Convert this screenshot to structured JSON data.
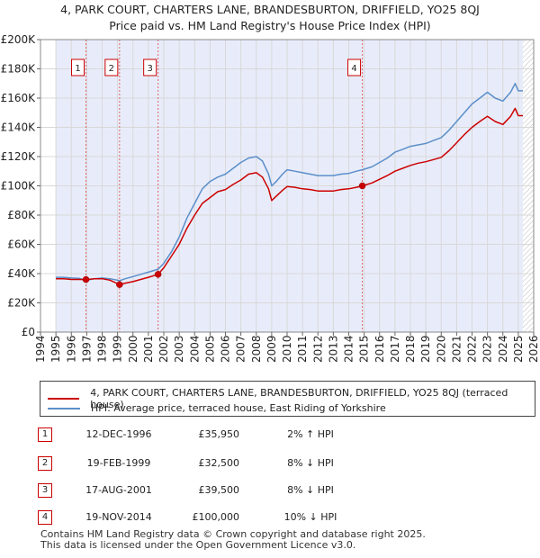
{
  "title_line1": "4, PARK COURT, CHARTERS LANE, BRANDESBURTON, DRIFFIELD, YO25 8QJ",
  "title_line2": "Price paid vs. HM Land Registry's House Price Index (HPI)",
  "colors": {
    "price_line": "#cc0000",
    "hpi_line": "#5b8fc9",
    "band": "#e8ecfa",
    "vline": "#dd6666"
  },
  "legend": {
    "price_label": "4, PARK COURT, CHARTERS LANE, BRANDESBURTON, DRIFFIELD, YO25 8QJ (terraced house)",
    "hpi_label": "HPI: Average price, terraced house, East Riding of Yorkshire"
  },
  "sales": [
    {
      "num": "1",
      "date": "12-DEC-1996",
      "price": "£35,950",
      "hpi": "2% ↑ HPI"
    },
    {
      "num": "2",
      "date": "19-FEB-1999",
      "price": "£32,500",
      "hpi": "8% ↓ HPI"
    },
    {
      "num": "3",
      "date": "17-AUG-2001",
      "price": "£39,500",
      "hpi": "8% ↓ HPI"
    },
    {
      "num": "4",
      "date": "19-NOV-2014",
      "price": "£100,000",
      "hpi": "10% ↓ HPI"
    }
  ],
  "footer": {
    "line1": "Contains HM Land Registry data © Crown copyright and database right 2025.",
    "line2": "This data is licensed under the Open Government Licence v3.0."
  },
  "chart_data": {
    "type": "line",
    "title": "Price paid vs. HM Land Registry's House Price Index (HPI)",
    "xlabel": "",
    "ylabel": "",
    "xlim": [
      1994,
      2026
    ],
    "ylim": [
      0,
      200000
    ],
    "x_ticks": [
      1994,
      1995,
      1996,
      1997,
      1998,
      1999,
      2000,
      2001,
      2002,
      2003,
      2004,
      2005,
      2006,
      2007,
      2008,
      2009,
      2010,
      2011,
      2012,
      2013,
      2014,
      2015,
      2016,
      2017,
      2018,
      2019,
      2020,
      2021,
      2022,
      2023,
      2024,
      2025,
      2026
    ],
    "y_ticks": [
      0,
      20000,
      40000,
      60000,
      80000,
      100000,
      120000,
      140000,
      160000,
      180000,
      200000
    ],
    "y_tick_labels": [
      "£0",
      "£20K",
      "£40K",
      "£60K",
      "£80K",
      "£100K",
      "£120K",
      "£140K",
      "£160K",
      "£180K",
      "£200K"
    ],
    "shaded_range": [
      1995.0,
      2025.3
    ],
    "sale_markers": [
      {
        "label": "1",
        "x": 1996.95,
        "y": 35950
      },
      {
        "label": "2",
        "x": 1999.13,
        "y": 32500
      },
      {
        "label": "3",
        "x": 2001.63,
        "y": 39500
      },
      {
        "label": "4",
        "x": 2014.88,
        "y": 100000
      }
    ],
    "series": [
      {
        "name": "HPI: Average price, terraced house, East Riding of Yorkshire",
        "color": "#5b8fc9",
        "x": [
          1995.0,
          1995.5,
          1996.0,
          1996.5,
          1996.95,
          1997.5,
          1998.0,
          1998.5,
          1999.13,
          1999.5,
          2000.0,
          2000.5,
          2001.0,
          2001.63,
          2002.0,
          2002.5,
          2003.0,
          2003.5,
          2004.0,
          2004.5,
          2005.0,
          2005.5,
          2006.0,
          2006.5,
          2007.0,
          2007.5,
          2008.0,
          2008.4,
          2008.8,
          2009.0,
          2009.3,
          2009.7,
          2010.0,
          2010.5,
          2011.0,
          2011.5,
          2012.0,
          2012.5,
          2013.0,
          2013.5,
          2014.0,
          2014.5,
          2014.88,
          2015.5,
          2016.0,
          2016.5,
          2017.0,
          2017.5,
          2018.0,
          2018.5,
          2019.0,
          2019.5,
          2020.0,
          2020.5,
          2021.0,
          2021.5,
          2022.0,
          2022.5,
          2023.0,
          2023.5,
          2024.0,
          2024.5,
          2024.8,
          2025.0,
          2025.3
        ],
        "values": [
          37500,
          37500,
          37000,
          36800,
          35300,
          36500,
          37000,
          36500,
          35200,
          36500,
          38000,
          39500,
          41000,
          43000,
          47000,
          55000,
          65000,
          78000,
          88000,
          98000,
          103000,
          106000,
          108000,
          112000,
          116000,
          119000,
          120000,
          117000,
          108000,
          100000,
          103000,
          108000,
          111000,
          110000,
          109000,
          108000,
          107000,
          107000,
          107000,
          108000,
          108500,
          110000,
          111000,
          113000,
          116000,
          119000,
          123000,
          125000,
          127000,
          128000,
          129000,
          131000,
          133000,
          138000,
          144000,
          150000,
          156000,
          160000,
          164000,
          160000,
          158000,
          164000,
          170000,
          165000,
          165000
        ]
      },
      {
        "name": "4, PARK COURT, CHARTERS LANE, BRANDESBURTON, DRIFFIELD, YO25 8QJ (terraced house)",
        "color": "#cc0000",
        "x": [
          1995.0,
          1995.5,
          1996.0,
          1996.5,
          1996.95,
          1997.5,
          1998.0,
          1998.5,
          1999.13,
          1999.5,
          2000.0,
          2000.5,
          2001.0,
          2001.63,
          2002.0,
          2002.5,
          2003.0,
          2003.5,
          2004.0,
          2004.5,
          2005.0,
          2005.5,
          2006.0,
          2006.5,
          2007.0,
          2007.5,
          2008.0,
          2008.4,
          2008.8,
          2009.0,
          2009.3,
          2009.7,
          2010.0,
          2010.5,
          2011.0,
          2011.5,
          2012.0,
          2012.5,
          2013.0,
          2013.5,
          2014.0,
          2014.5,
          2014.88,
          2015.5,
          2016.0,
          2016.5,
          2017.0,
          2017.5,
          2018.0,
          2018.5,
          2019.0,
          2019.5,
          2020.0,
          2020.5,
          2021.0,
          2021.5,
          2022.0,
          2022.5,
          2023.0,
          2023.5,
          2024.0,
          2024.5,
          2024.8,
          2025.0,
          2025.3
        ],
        "values": [
          36500,
          36500,
          36000,
          36000,
          35950,
          36500,
          36500,
          35500,
          32500,
          33500,
          34500,
          36000,
          37500,
          39500,
          44000,
          52000,
          60000,
          71000,
          80000,
          88000,
          92000,
          96000,
          97500,
          101000,
          104000,
          108000,
          109000,
          106000,
          98000,
          90000,
          93000,
          97000,
          99500,
          99000,
          98000,
          97500,
          96500,
          96500,
          96500,
          97500,
          98000,
          99000,
          100000,
          102000,
          104500,
          107000,
          110000,
          112000,
          114000,
          115500,
          116500,
          118000,
          119500,
          124000,
          129500,
          135000,
          140000,
          144000,
          147500,
          144000,
          142000,
          147500,
          153000,
          148000,
          148000
        ]
      }
    ]
  }
}
